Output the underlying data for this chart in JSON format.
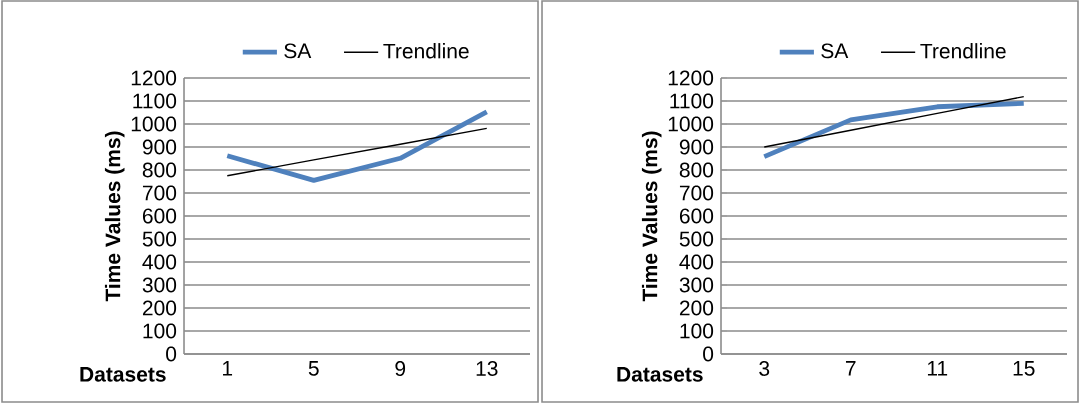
{
  "chart_data": [
    {
      "type": "line",
      "xlabel": "Datasets",
      "ylabel": "Time Values (ms)",
      "categories": [
        "1",
        "5",
        "9",
        "13"
      ],
      "ylim": [
        0,
        1200
      ],
      "yticks": [
        0,
        100,
        200,
        300,
        400,
        500,
        600,
        700,
        800,
        900,
        1000,
        1100,
        1200
      ],
      "grid": "y",
      "legend": "top",
      "series": [
        {
          "name": "SA",
          "color": "#4f81bd",
          "values": [
            862,
            755,
            851,
            1053
          ]
        },
        {
          "name": "Trendline",
          "color": "#000000",
          "values": [
            775,
            844,
            912,
            981
          ]
        }
      ]
    },
    {
      "type": "line",
      "xlabel": "Datasets",
      "ylabel": "Time Values (ms)",
      "categories": [
        "3",
        "7",
        "11",
        "15"
      ],
      "ylim": [
        0,
        1200
      ],
      "yticks": [
        0,
        100,
        200,
        300,
        400,
        500,
        600,
        700,
        800,
        900,
        1000,
        1100,
        1200
      ],
      "grid": "y",
      "legend": "top",
      "series": [
        {
          "name": "SA",
          "color": "#4f81bd",
          "values": [
            858,
            1018,
            1075,
            1090
          ]
        },
        {
          "name": "Trendline",
          "color": "#000000",
          "values": [
            900,
            973,
            1046,
            1119
          ]
        }
      ]
    }
  ]
}
